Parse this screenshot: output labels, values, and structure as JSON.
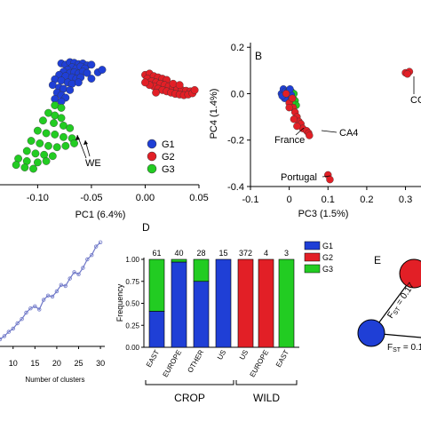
{
  "colors": {
    "G1": "#1f3fd6",
    "G2": "#e21f26",
    "G3": "#22cc22",
    "line": "#6f78c8",
    "axis": "#000000"
  },
  "chart_data": [
    {
      "type": "scatter",
      "panel": "A",
      "xlabel": "PC1 (6.4%)",
      "xticks": [
        "-0.10",
        "-0.05",
        "0.00",
        "0.05"
      ],
      "xlim": [
        -0.135,
        0.05
      ],
      "ylim": [
        -0.12,
        0.09
      ],
      "legend": {
        "placement": "bottom-right",
        "entries": [
          "G1",
          "G2",
          "G3"
        ]
      },
      "annotations": [
        "WE"
      ],
      "series": [
        {
          "name": "G1",
          "points": [
            [
              -0.078,
              0.06
            ],
            [
              -0.074,
              0.058
            ],
            [
              -0.07,
              0.062
            ],
            [
              -0.066,
              0.061
            ],
            [
              -0.062,
              0.059
            ],
            [
              -0.058,
              0.06
            ],
            [
              -0.054,
              0.057
            ],
            [
              -0.05,
              0.058
            ],
            [
              -0.068,
              0.054
            ],
            [
              -0.064,
              0.052
            ],
            [
              -0.06,
              0.055
            ],
            [
              -0.056,
              0.052
            ],
            [
              -0.072,
              0.05
            ],
            [
              -0.076,
              0.047
            ],
            [
              -0.07,
              0.045
            ],
            [
              -0.066,
              0.046
            ],
            [
              -0.062,
              0.044
            ],
            [
              -0.058,
              0.047
            ],
            [
              -0.054,
              0.045
            ],
            [
              -0.08,
              0.042
            ],
            [
              -0.074,
              0.04
            ],
            [
              -0.068,
              0.038
            ],
            [
              -0.064,
              0.036
            ],
            [
              -0.06,
              0.038
            ],
            [
              -0.084,
              0.035
            ],
            [
              -0.078,
              0.033
            ],
            [
              -0.072,
              0.03
            ],
            [
              -0.068,
              0.028
            ],
            [
              -0.062,
              0.03
            ],
            [
              -0.086,
              0.026
            ],
            [
              -0.08,
              0.022
            ],
            [
              -0.076,
              0.02
            ],
            [
              -0.07,
              0.018
            ],
            [
              -0.082,
              0.014
            ],
            [
              -0.078,
              0.01
            ],
            [
              -0.074,
              0.006
            ],
            [
              -0.084,
              0.004
            ],
            [
              -0.078,
              0.0
            ],
            [
              -0.044,
              0.046
            ],
            [
              -0.04,
              0.05
            ],
            [
              -0.05,
              0.036
            ]
          ]
        },
        {
          "name": "G2",
          "points": [
            [
              0.0,
              0.042
            ],
            [
              0.004,
              0.044
            ],
            [
              0.002,
              0.036
            ],
            [
              0.008,
              0.04
            ],
            [
              0.012,
              0.038
            ],
            [
              0.016,
              0.036
            ],
            [
              0.02,
              0.034
            ],
            [
              0.006,
              0.032
            ],
            [
              0.01,
              0.03
            ],
            [
              0.014,
              0.028
            ],
            [
              0.018,
              0.026
            ],
            [
              0.022,
              0.024
            ],
            [
              0.026,
              0.022
            ],
            [
              0.03,
              0.02
            ],
            [
              0.034,
              0.018
            ],
            [
              0.038,
              0.017
            ],
            [
              0.042,
              0.016
            ],
            [
              0.008,
              0.024
            ],
            [
              0.012,
              0.02
            ],
            [
              0.016,
              0.018
            ],
            [
              0.02,
              0.016
            ],
            [
              0.024,
              0.014
            ],
            [
              0.028,
              0.012
            ],
            [
              0.032,
              0.011
            ],
            [
              0.036,
              0.01
            ],
            [
              0.04,
              0.011
            ],
            [
              0.044,
              0.013
            ],
            [
              0.046,
              0.018
            ],
            [
              0.004,
              0.026
            ],
            [
              0.0,
              0.03
            ],
            [
              0.01,
              0.014
            ],
            [
              0.026,
              0.028
            ],
            [
              0.032,
              0.026
            ]
          ]
        },
        {
          "name": "G3",
          "points": [
            [
              -0.084,
              -0.006
            ],
            [
              -0.078,
              -0.01
            ],
            [
              -0.09,
              -0.018
            ],
            [
              -0.084,
              -0.022
            ],
            [
              -0.078,
              -0.026
            ],
            [
              -0.095,
              -0.03
            ],
            [
              -0.085,
              -0.034
            ],
            [
              -0.076,
              -0.038
            ],
            [
              -0.07,
              -0.042
            ],
            [
              -0.1,
              -0.046
            ],
            [
              -0.092,
              -0.05
            ],
            [
              -0.084,
              -0.052
            ],
            [
              -0.076,
              -0.056
            ],
            [
              -0.068,
              -0.058
            ],
            [
              -0.106,
              -0.062
            ],
            [
              -0.098,
              -0.066
            ],
            [
              -0.09,
              -0.07
            ],
            [
              -0.082,
              -0.072
            ],
            [
              -0.074,
              -0.07
            ],
            [
              -0.066,
              -0.066
            ],
            [
              -0.11,
              -0.078
            ],
            [
              -0.102,
              -0.082
            ],
            [
              -0.094,
              -0.084
            ],
            [
              -0.086,
              -0.086
            ],
            [
              -0.118,
              -0.09
            ],
            [
              -0.11,
              -0.094
            ],
            [
              -0.1,
              -0.096
            ],
            [
              -0.092,
              -0.094
            ],
            [
              -0.12,
              -0.1
            ],
            [
              -0.112,
              -0.104
            ],
            [
              -0.104,
              -0.106
            ]
          ]
        }
      ]
    },
    {
      "type": "scatter",
      "panel": "B",
      "xlabel": "PC3 (1.5%)",
      "ylabel": "PC4 (1.4%)",
      "xticks": [
        "-0.1",
        "0",
        "0.1",
        "0.2",
        "0.3"
      ],
      "yticks": [
        "0.2",
        "0.0",
        "-0.2",
        "-0.4"
      ],
      "xlim": [
        -0.1,
        0.34
      ],
      "ylim": [
        -0.4,
        0.22
      ],
      "annotations": [
        "France",
        "CA4",
        "Portugal",
        "CC"
      ],
      "series": [
        {
          "name": "G1",
          "points": [
            [
              -0.02,
              0.0
            ],
            [
              -0.015,
              0.02
            ],
            [
              -0.01,
              0.01
            ],
            [
              -0.005,
              -0.01
            ],
            [
              0.0,
              0.015
            ],
            [
              -0.012,
              -0.02
            ],
            [
              -0.005,
              0.005
            ],
            [
              0.005,
              -0.005
            ],
            [
              -0.018,
              -0.01
            ],
            [
              0.002,
              0.02
            ]
          ]
        },
        {
          "name": "G2",
          "points": [
            [
              0.0,
              -0.04
            ],
            [
              0.01,
              -0.06
            ],
            [
              0.015,
              -0.08
            ],
            [
              0.02,
              -0.1
            ],
            [
              0.025,
              -0.12
            ],
            [
              0.03,
              -0.13
            ],
            [
              0.035,
              -0.15
            ],
            [
              0.045,
              -0.16
            ],
            [
              0.05,
              -0.17
            ],
            [
              0.052,
              -0.18
            ],
            [
              0.008,
              -0.02
            ],
            [
              0.0,
              -0.06
            ],
            [
              0.012,
              -0.11
            ],
            [
              0.02,
              -0.14
            ],
            [
              0.1,
              -0.35
            ],
            [
              0.105,
              -0.37
            ],
            [
              0.3,
              0.09
            ],
            [
              0.31,
              0.095
            ],
            [
              0.305,
              0.085
            ],
            [
              -0.008,
              0.0
            ]
          ]
        },
        {
          "name": "G3",
          "points": [
            [
              0.005,
              0.01
            ],
            [
              0.01,
              -0.02
            ],
            [
              0.012,
              0.0
            ],
            [
              0.015,
              -0.03
            ],
            [
              0.018,
              -0.05
            ],
            [
              0.008,
              -0.04
            ]
          ]
        }
      ]
    },
    {
      "type": "line",
      "panel": "C",
      "xlabel": "Number of clusters",
      "xticks": [
        "10",
        "15",
        "20",
        "25",
        "30"
      ],
      "xlim": [
        7,
        31
      ],
      "ylim": [
        0,
        1
      ],
      "series": [
        {
          "name": "",
          "x": [
            7,
            8,
            9,
            10,
            11,
            12,
            13,
            14,
            15,
            16,
            17,
            18,
            19,
            20,
            21,
            22,
            23,
            24,
            25,
            26,
            27,
            28,
            29,
            30
          ],
          "values": [
            0.05,
            0.08,
            0.12,
            0.15,
            0.2,
            0.24,
            0.3,
            0.34,
            0.36,
            0.33,
            0.42,
            0.46,
            0.45,
            0.5,
            0.56,
            0.55,
            0.62,
            0.68,
            0.66,
            0.72,
            0.8,
            0.84,
            0.92,
            0.96
          ]
        }
      ]
    },
    {
      "type": "bar",
      "panel": "D",
      "stacked": true,
      "ylabel": "Frequency",
      "yticks": [
        "0.00",
        "0.25",
        "0.50",
        "0.75",
        "1.00"
      ],
      "ylim": [
        0,
        1
      ],
      "categories": [
        "EAST",
        "EUROPE",
        "OTHER",
        "US",
        "US",
        "EUROPE",
        "EAST"
      ],
      "counts": [
        "61",
        "40",
        "28",
        "15",
        "372",
        "4",
        "3"
      ],
      "groups": [
        {
          "label": "CROP",
          "categories": [
            0,
            3
          ]
        },
        {
          "label": "WILD",
          "categories": [
            4,
            6
          ]
        }
      ],
      "legend": {
        "placement": "right",
        "entries": [
          "G1",
          "G2",
          "G3"
        ]
      },
      "series": [
        {
          "name": "G1",
          "values": [
            0.41,
            0.97,
            0.75,
            1.0,
            0.0,
            0.0,
            0.0
          ]
        },
        {
          "name": "G2",
          "values": [
            0.0,
            0.0,
            0.0,
            0.0,
            1.0,
            1.0,
            0.0
          ]
        },
        {
          "name": "G3",
          "values": [
            0.59,
            0.03,
            0.25,
            0.0,
            0.0,
            0.0,
            1.0
          ]
        }
      ]
    }
  ],
  "panel_e": {
    "label": "E",
    "fst_left": "F",
    "fst_left_sub": "ST",
    "fst_left_value": " = 0.17",
    "fst_bottom": "F",
    "fst_bottom_sub": "ST",
    "fst_bottom_value": " = 0.1"
  },
  "panel_labels": {
    "b": "B",
    "d": "D",
    "e": "E"
  }
}
